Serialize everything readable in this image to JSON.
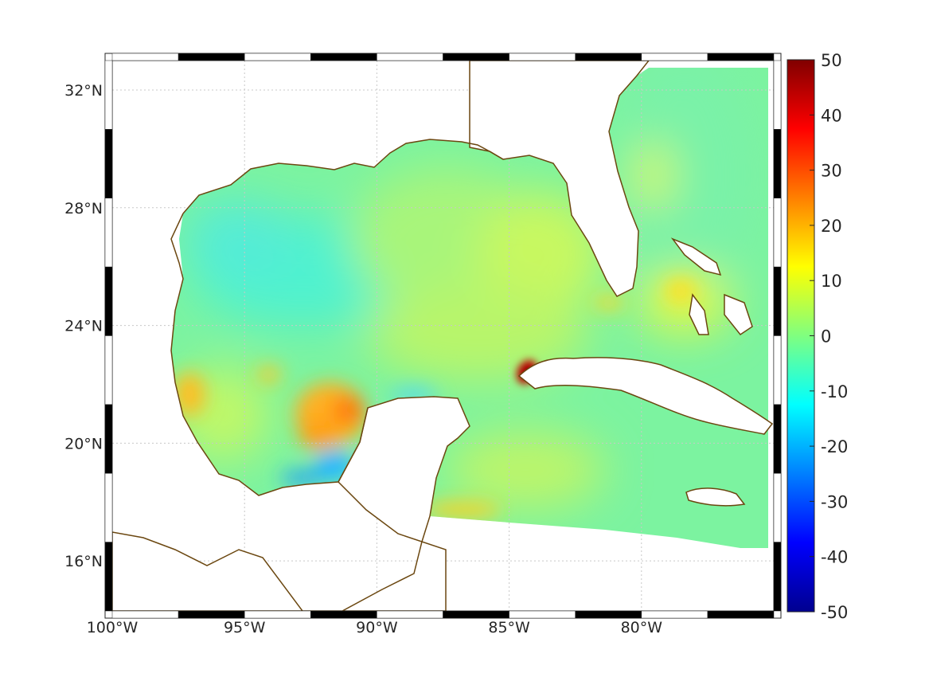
{
  "map": {
    "lon_labels": [
      "100°W",
      "95°W",
      "90°W",
      "85°W",
      "80°W"
    ],
    "lat_labels": [
      "32°N",
      "28°N",
      "24°N",
      "20°N",
      "16°N"
    ],
    "lon_values": [
      -100,
      -95,
      -90,
      -85,
      -80
    ],
    "lat_values": [
      32,
      28,
      24,
      20,
      16
    ],
    "extent": {
      "lon": [
        -100,
        -75
      ],
      "lat": [
        14.3,
        33
      ]
    },
    "grid": true,
    "coastline_color": "#6b4710",
    "land_color": "#ffffff",
    "features": {
      "florida_peninsula": "land",
      "yucatan_peninsula": "land",
      "cuba": "island",
      "jamaica": "island",
      "bahamas": "islands"
    },
    "anomaly_regions": [
      {
        "name": "western Cuba hotspot",
        "value": 45
      },
      {
        "name": "Bay of Campeche warm patch",
        "value": 22
      },
      {
        "name": "southern Bay of Campeche cold patch",
        "value": -15
      },
      {
        "name": "Gulf of Honduras warm band",
        "value": 18
      },
      {
        "name": "Florida Keys warm patch",
        "value": 15
      },
      {
        "name": "central Gulf background",
        "value": -4
      },
      {
        "name": "eastern Gulf background",
        "value": 5
      }
    ]
  },
  "colorbar": {
    "colormap": "jet",
    "min": -50,
    "max": 50,
    "tick_labels": [
      "50",
      "40",
      "30",
      "20",
      "10",
      "0",
      "-10",
      "-20",
      "-30",
      "-40",
      "-50"
    ]
  }
}
